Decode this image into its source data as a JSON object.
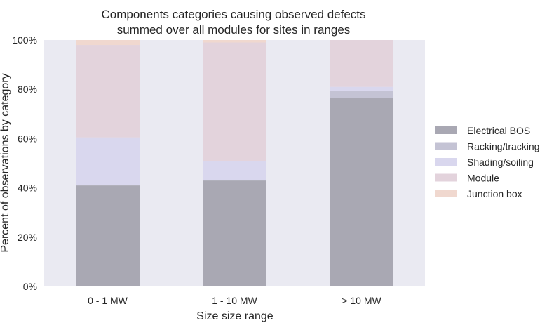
{
  "chart_data": {
    "type": "bar",
    "stacked": true,
    "title": "Components categories causing observed defects",
    "subtitle": "summed over all modules for sites in ranges",
    "xlabel": "Size size range",
    "ylabel": "Percent of observations by category",
    "categories": [
      "0 - 1 MW",
      "1 - 10 MW",
      "> 10 MW"
    ],
    "ylim": [
      0,
      100
    ],
    "yticks": [
      "0%",
      "20%",
      "40%",
      "60%",
      "80%",
      "100%"
    ],
    "yticks_values": [
      0,
      20,
      40,
      60,
      80,
      100
    ],
    "grid": false,
    "legend_position": "right",
    "series": [
      {
        "name": "Electrical BOS",
        "color": "#a9a8b3",
        "values": [
          41,
          43,
          76.5
        ]
      },
      {
        "name": "Racking/tracking",
        "color": "#c4c3d4",
        "values": [
          0,
          0,
          3
        ]
      },
      {
        "name": "Shading/soiling",
        "color": "#d9d7ee",
        "values": [
          19.5,
          8,
          1.5
        ]
      },
      {
        "name": "Module",
        "color": "#e3d3dc",
        "values": [
          37.5,
          48,
          19
        ]
      },
      {
        "name": "Junction box",
        "color": "#f0d8cf",
        "values": [
          2,
          1,
          0
        ]
      }
    ]
  }
}
